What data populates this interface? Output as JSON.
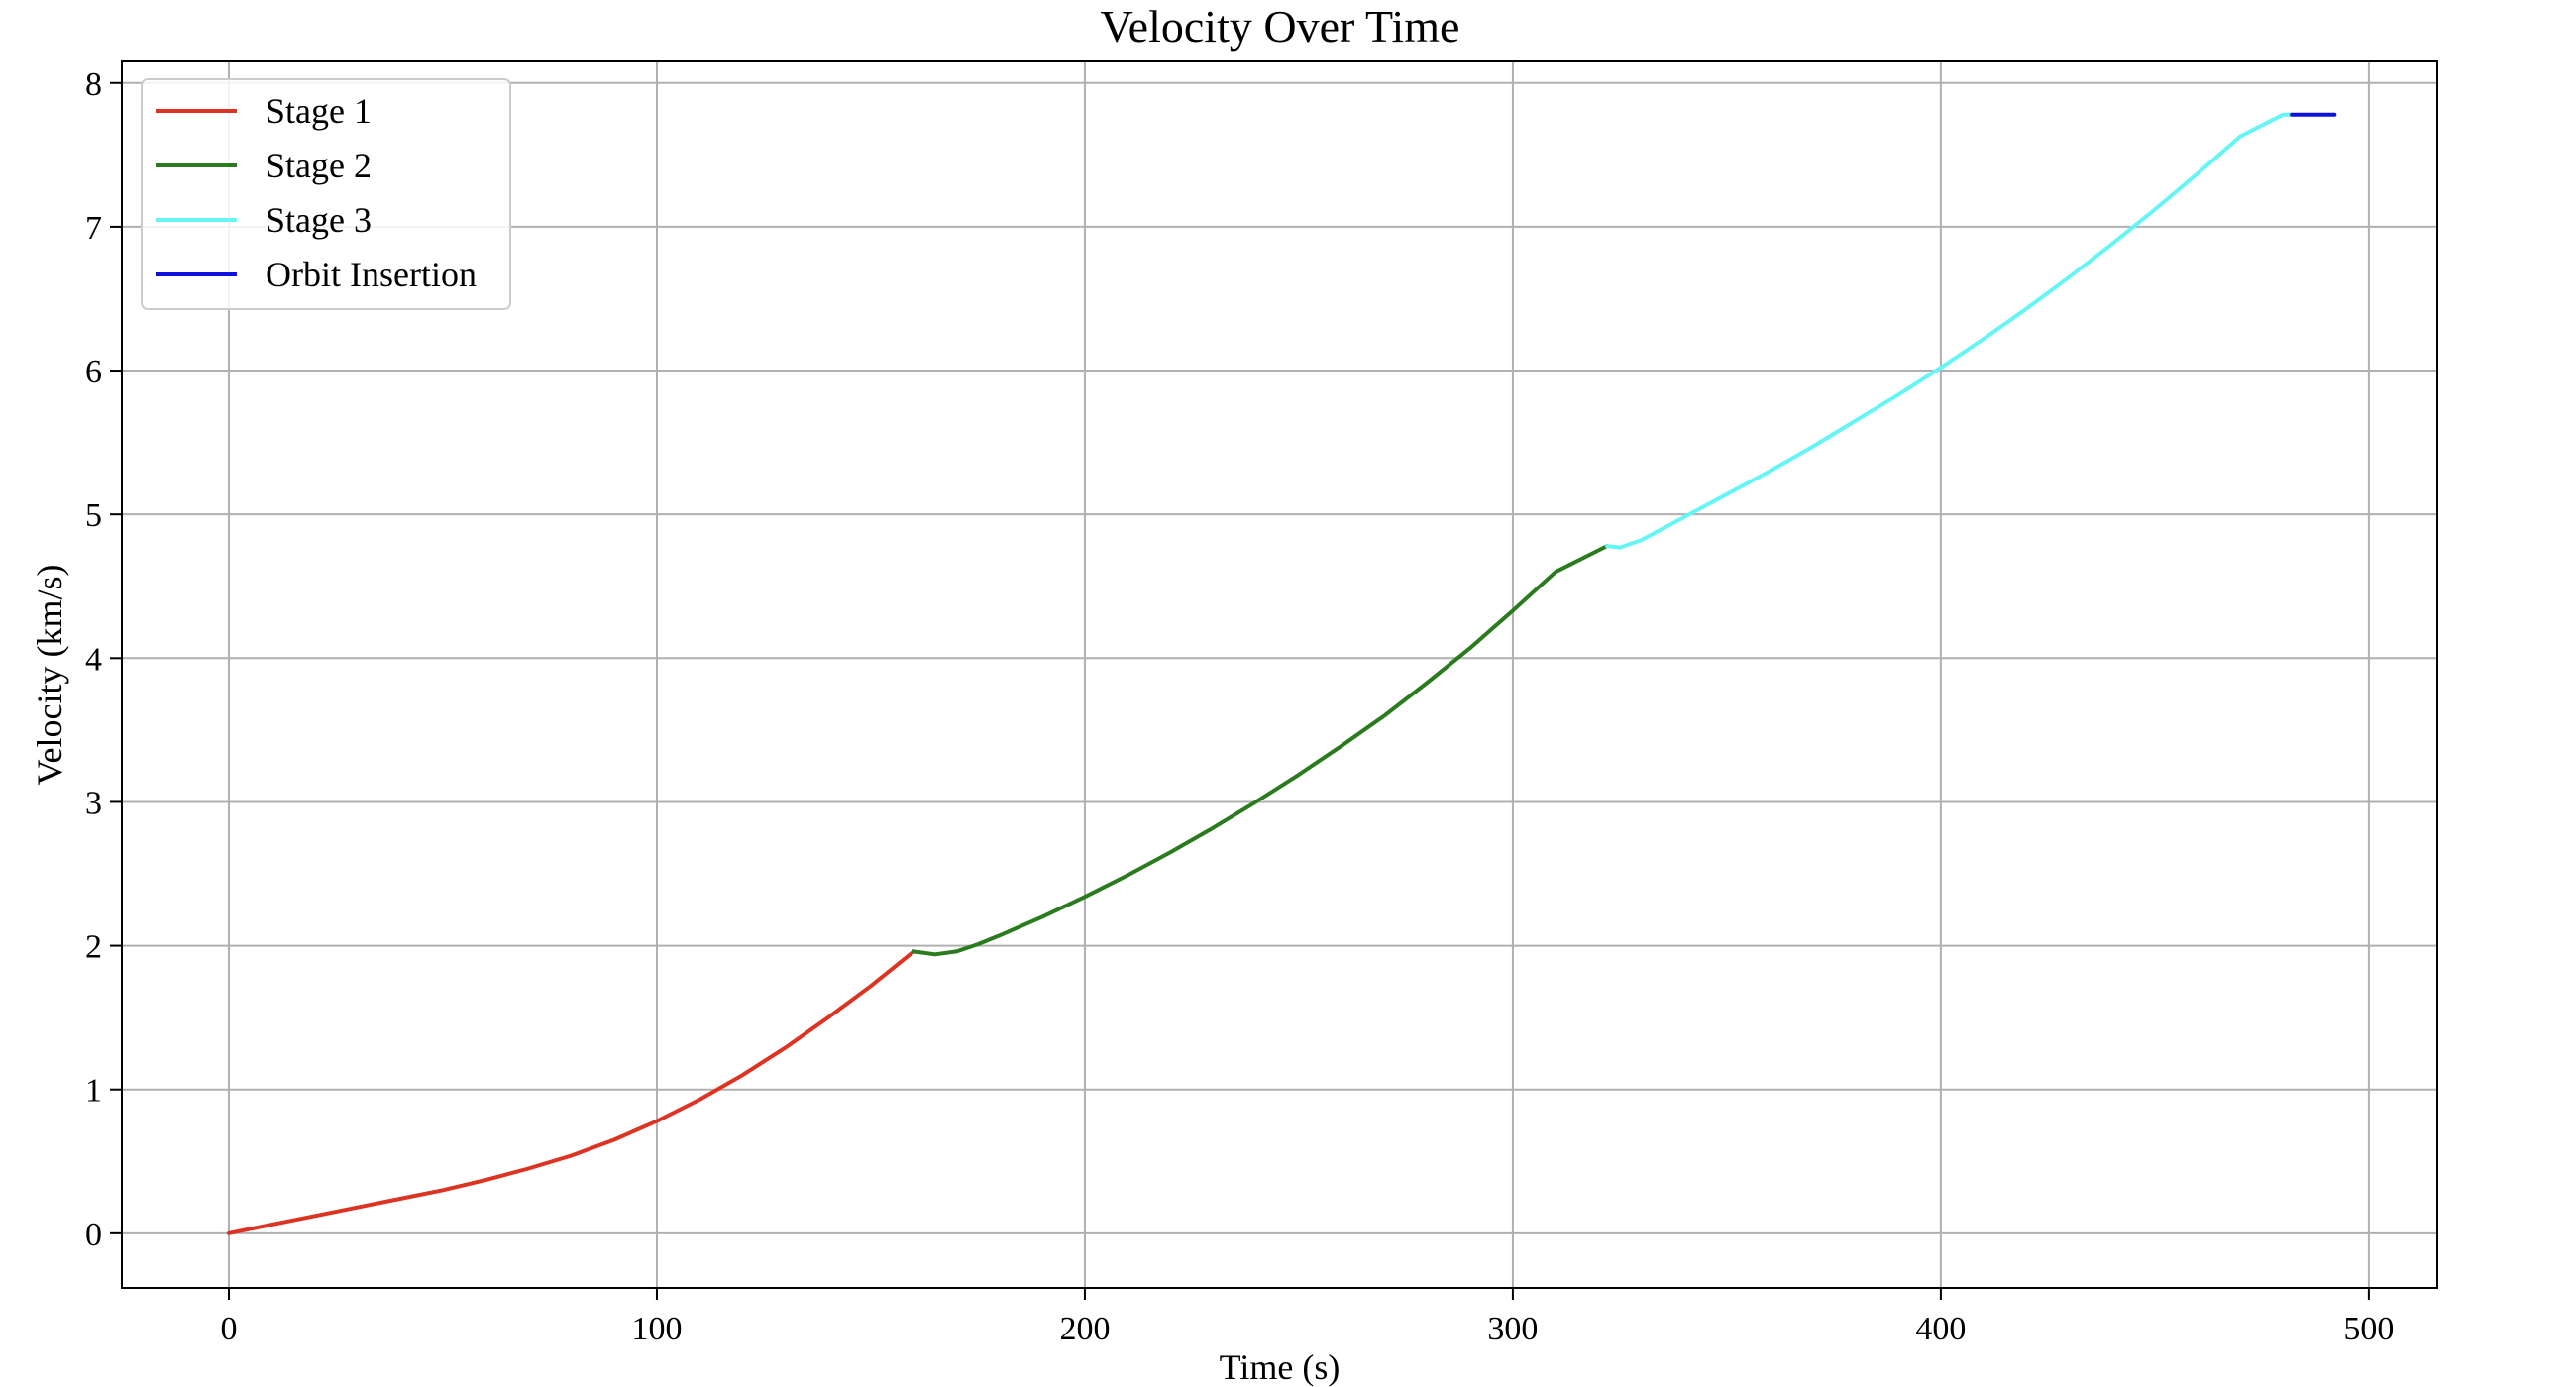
{
  "chart_data": {
    "type": "line",
    "title": "Velocity Over Time",
    "xlabel": "Time (s)",
    "ylabel": "Velocity (km/s)",
    "xlim": [
      -25,
      516
    ],
    "ylim": [
      -0.38,
      8.15
    ],
    "xticks": [
      0,
      100,
      200,
      300,
      400,
      500
    ],
    "yticks": [
      0,
      1,
      2,
      3,
      4,
      5,
      6,
      7,
      8
    ],
    "grid": true,
    "legend_position": "top-left",
    "series": [
      {
        "name": "Stage 1",
        "color": "#dd3322",
        "x": [
          0,
          10,
          20,
          30,
          40,
          50,
          60,
          70,
          80,
          90,
          100,
          110,
          120,
          130,
          140,
          150,
          160
        ],
        "y": [
          0.0,
          0.06,
          0.12,
          0.18,
          0.24,
          0.3,
          0.37,
          0.45,
          0.54,
          0.65,
          0.78,
          0.93,
          1.1,
          1.29,
          1.5,
          1.72,
          1.96
        ]
      },
      {
        "name": "Stage 2",
        "color": "#2a7a1e",
        "x": [
          160,
          165,
          170,
          175,
          180,
          190,
          200,
          210,
          220,
          230,
          240,
          250,
          260,
          270,
          280,
          290,
          300,
          310,
          320,
          322
        ],
        "y": [
          1.96,
          1.94,
          1.96,
          2.01,
          2.07,
          2.2,
          2.34,
          2.49,
          2.65,
          2.82,
          3.0,
          3.19,
          3.39,
          3.6,
          3.83,
          4.07,
          4.33,
          4.6,
          4.75,
          4.78
        ]
      },
      {
        "name": "Stage 3",
        "color": "#66f5f5",
        "x": [
          322,
          325,
          330,
          340,
          350,
          360,
          370,
          380,
          390,
          400,
          410,
          420,
          430,
          440,
          450,
          460,
          470,
          480,
          482
        ],
        "y": [
          4.78,
          4.77,
          4.82,
          4.98,
          5.14,
          5.3,
          5.47,
          5.65,
          5.83,
          6.02,
          6.22,
          6.43,
          6.65,
          6.88,
          7.12,
          7.37,
          7.63,
          7.78,
          7.78
        ]
      },
      {
        "name": "Orbit Insertion",
        "color": "#1010dd",
        "x": [
          482,
          492
        ],
        "y": [
          7.78,
          7.78
        ]
      }
    ]
  }
}
